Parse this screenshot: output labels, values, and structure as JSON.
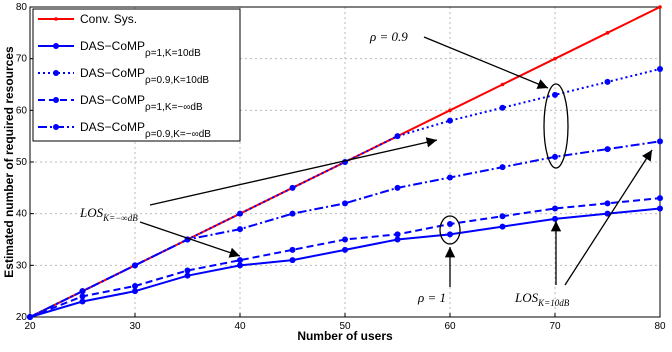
{
  "chart_data": {
    "type": "line",
    "x_label": "Number of users",
    "y_label": "Estimated number of required resources",
    "x": [
      20,
      25,
      30,
      35,
      40,
      45,
      50,
      55,
      60,
      65,
      70,
      75,
      80
    ],
    "series": [
      {
        "name": "Conv. Sys.",
        "color": "#ff0000",
        "style": "solid",
        "values": [
          20,
          25,
          30,
          35,
          40,
          45,
          50,
          55,
          60,
          65,
          70,
          75,
          80
        ]
      },
      {
        "name": "DAS−CoMP",
        "legend_subscript": "ρ=1,K=10dB",
        "color": "#0000ff",
        "style": "solid",
        "values": [
          20,
          23,
          25,
          28,
          30,
          31,
          33,
          35,
          36,
          37.5,
          39,
          40,
          41
        ]
      },
      {
        "name": "DAS−CoMP",
        "legend_subscript": "ρ=0.9,K=10dB",
        "color": "#0000ff",
        "style": "dotted",
        "values": [
          20,
          25,
          30,
          35,
          40,
          45,
          50,
          55,
          58,
          60.5,
          63,
          65.5,
          68
        ]
      },
      {
        "name": "DAS−CoMP",
        "legend_subscript": "ρ=1,K=−∞dB",
        "color": "#0000ff",
        "style": "dashed",
        "values": [
          20,
          24,
          26,
          29,
          31,
          33,
          35,
          36,
          38,
          39.5,
          41,
          42,
          43
        ]
      },
      {
        "name": "DAS−CoMP",
        "legend_subscript": "ρ=0.9,K=−∞dB",
        "color": "#0000ff",
        "style": "dashdot",
        "values": [
          20,
          25,
          30,
          35,
          37,
          40,
          42,
          45,
          47,
          49,
          51,
          52.5,
          54
        ]
      }
    ],
    "xlim": [
      20,
      80
    ],
    "xticks": [
      20,
      30,
      40,
      50,
      60,
      70,
      80
    ],
    "ylim": [
      20,
      80
    ],
    "yticks": [
      20,
      30,
      40,
      50,
      60,
      70,
      80
    ],
    "grid": true,
    "legend": "upper-left",
    "annotations": [
      {
        "text": "ρ = 0.9"
      },
      {
        "text": "LOS",
        "subscript": "K=−∞dB"
      },
      {
        "text": "ρ = 1"
      },
      {
        "text": "LOS",
        "subscript": "K=10dB"
      }
    ]
  }
}
